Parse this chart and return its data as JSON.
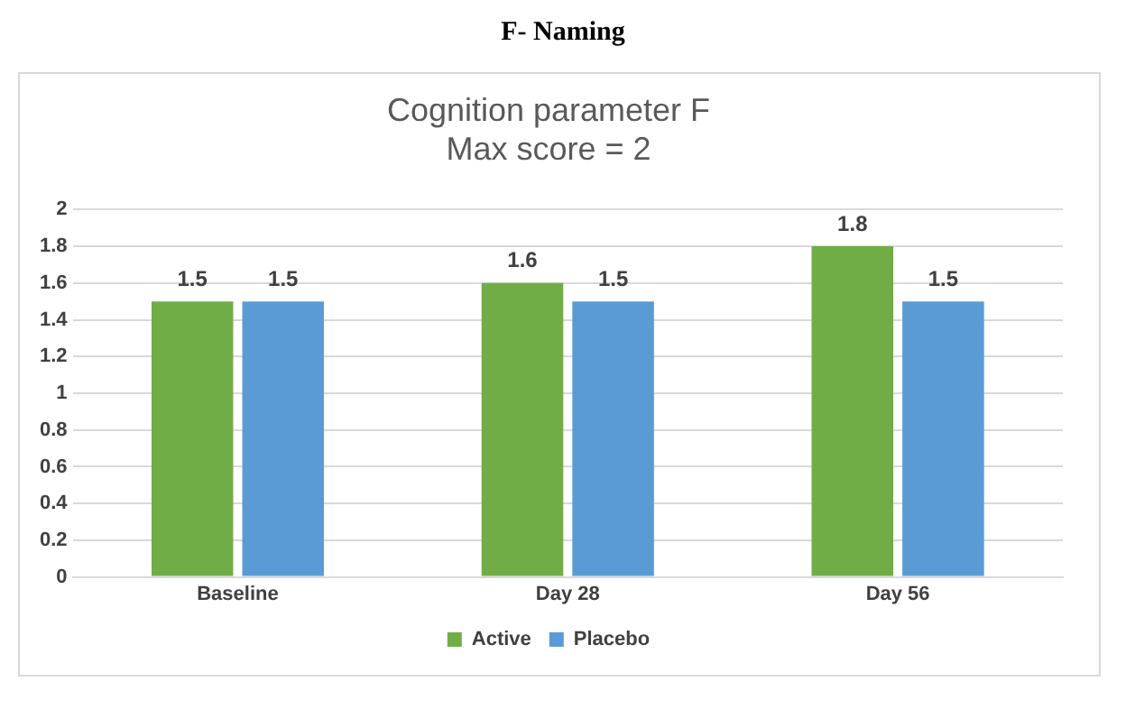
{
  "chart_data": {
    "type": "bar",
    "title": "F- Naming",
    "subtitle": "Cognition parameter F\nMax score = 2",
    "categories": [
      "Baseline",
      "Day 28",
      "Day 56"
    ],
    "series": [
      {
        "name": "Active",
        "color": "#70ad47",
        "values": [
          1.5,
          1.6,
          1.8
        ]
      },
      {
        "name": "Placebo",
        "color": "#5b9bd5",
        "values": [
          1.5,
          1.5,
          1.5
        ]
      }
    ],
    "ylim": [
      0,
      2
    ],
    "yticks": [
      0,
      0.2,
      0.4,
      0.6,
      0.8,
      1,
      1.2,
      1.4,
      1.6,
      1.8,
      2
    ],
    "grid": "y",
    "legend": "bottom",
    "data_labels": true
  }
}
